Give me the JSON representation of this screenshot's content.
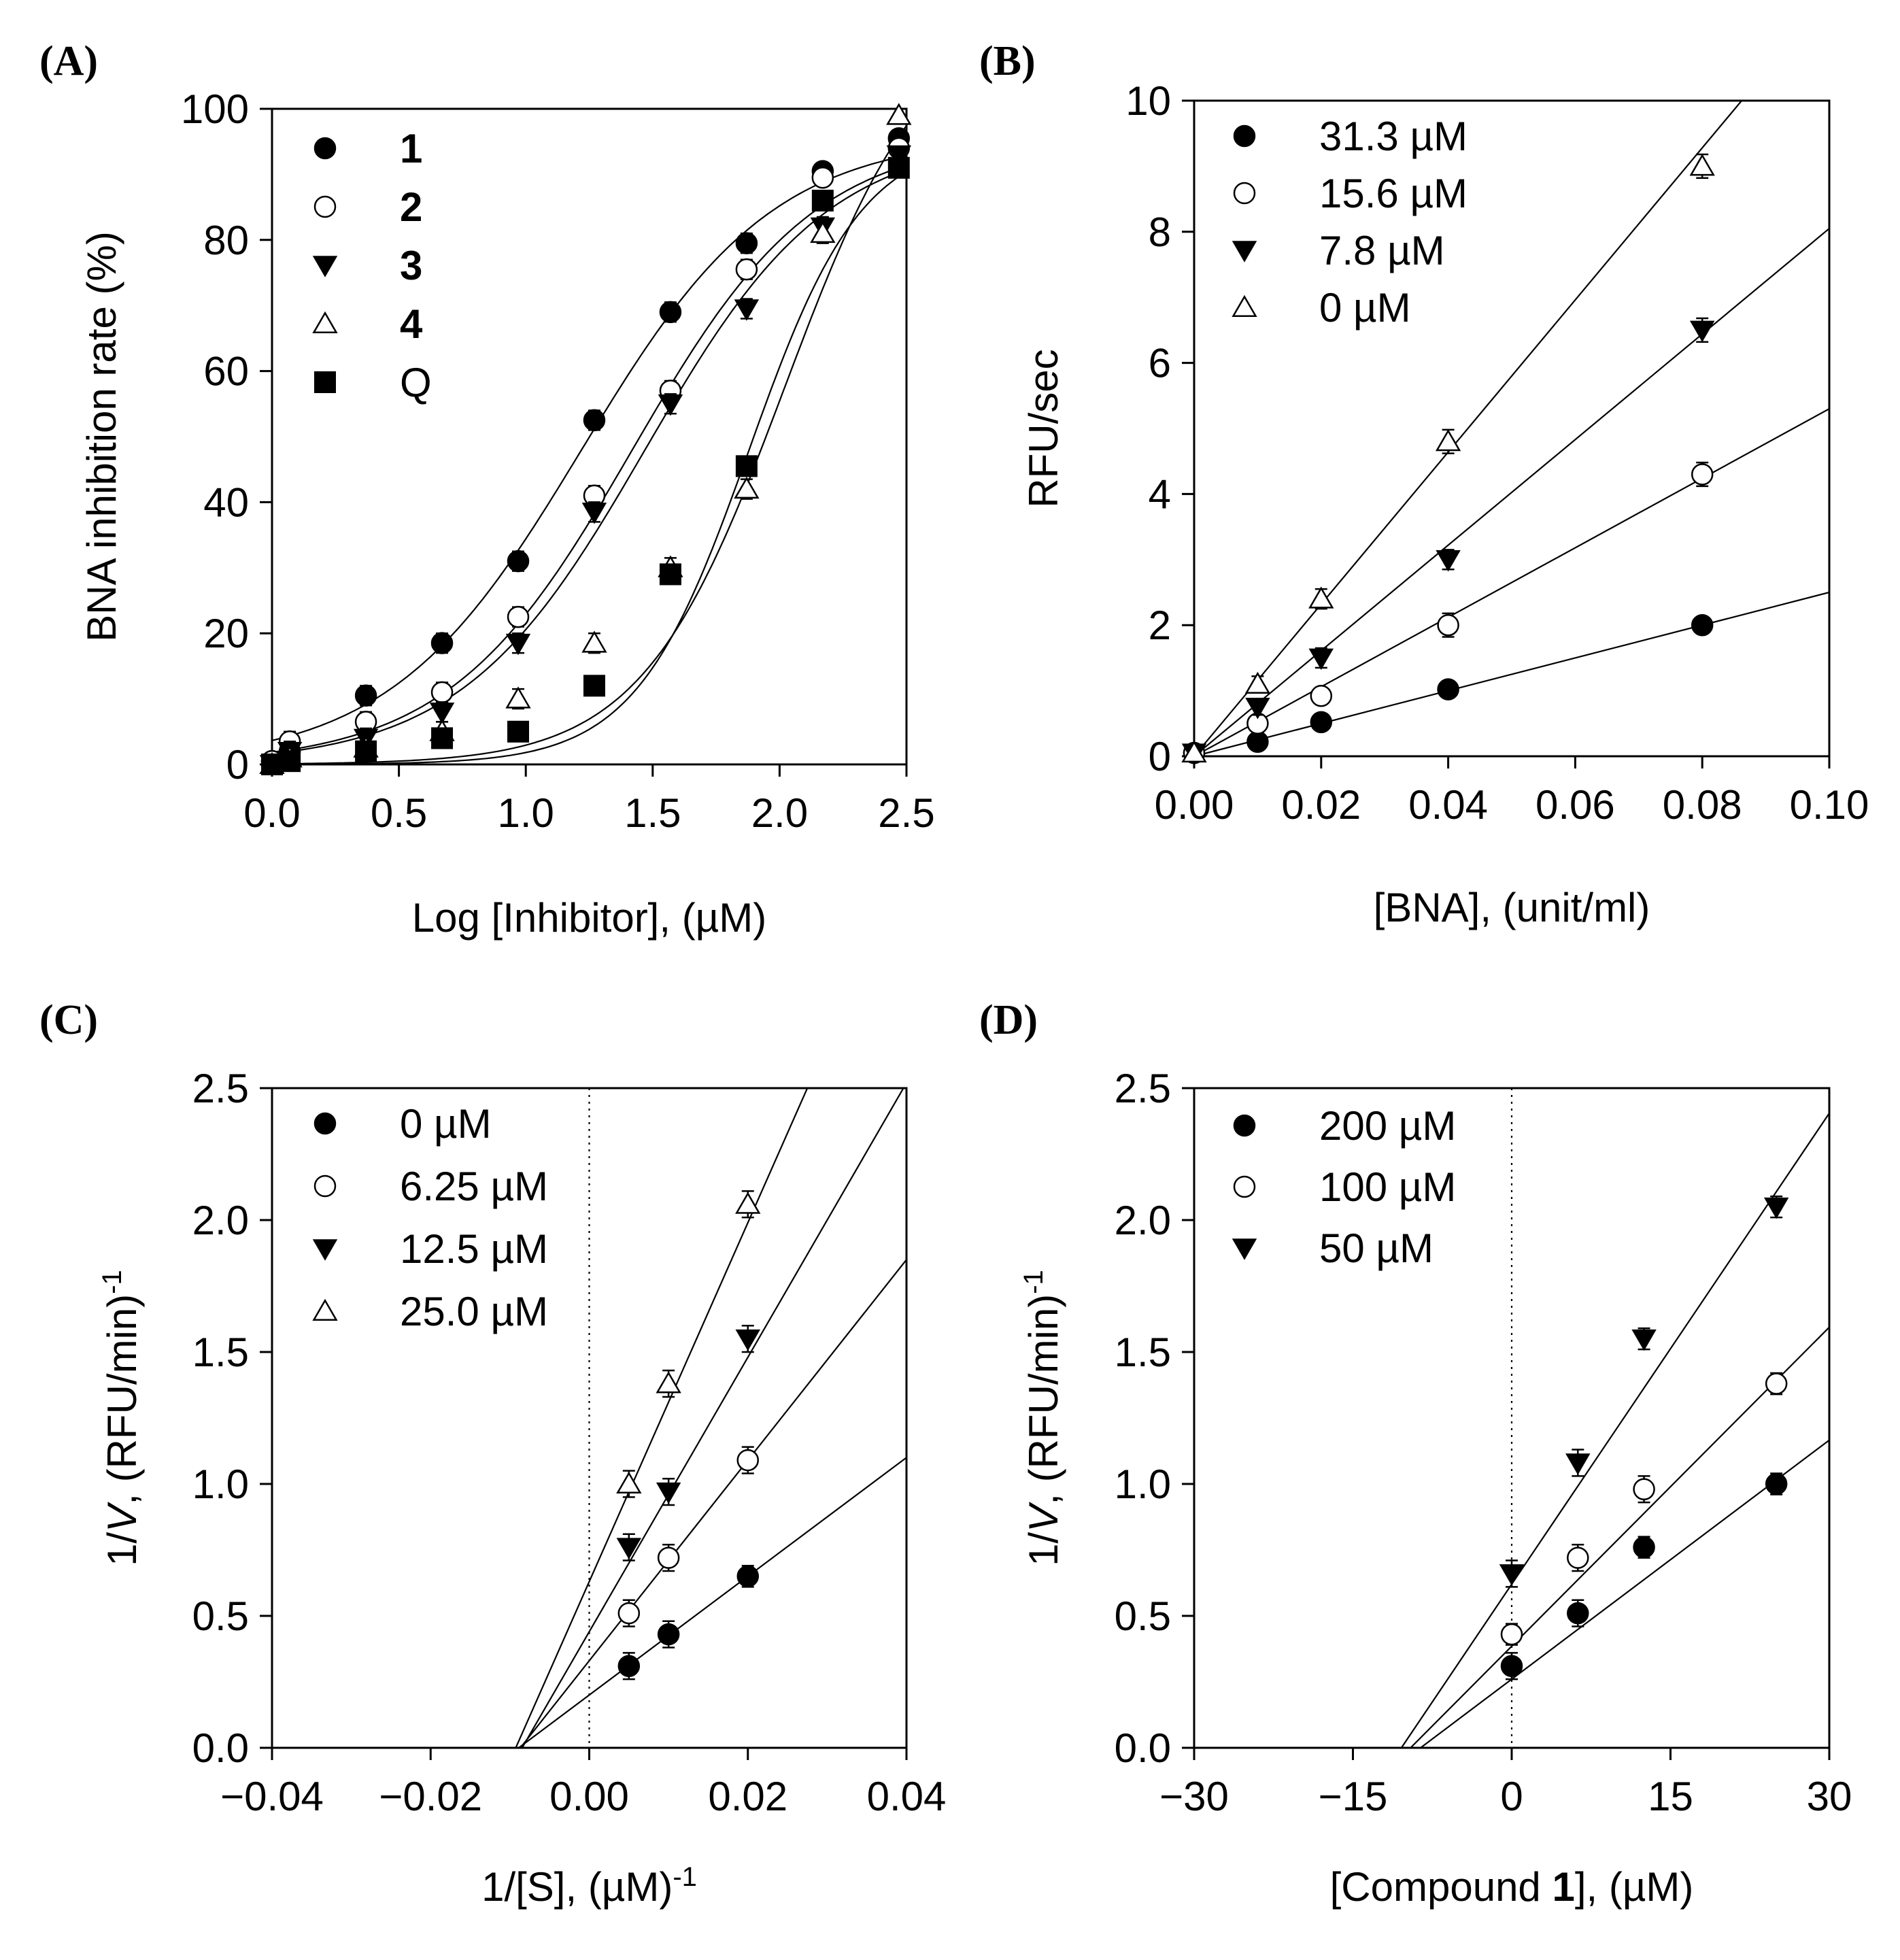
{
  "chart_data": [
    {
      "id": "A",
      "panel_label": "(A)",
      "type": "scatter",
      "xlabel": "Log [Inhibitor], (µM)",
      "ylabel": "BNA inhibition rate (%)",
      "xlim": [
        0,
        2.5
      ],
      "ylim": [
        0,
        100
      ],
      "xticks": [
        0,
        0.5,
        1,
        1.5,
        2,
        2.5
      ],
      "xtick_labels": [
        "0.0",
        "0.5",
        "1.0",
        "1.5",
        "2.0",
        "2.5"
      ],
      "yticks": [
        0,
        20,
        40,
        60,
        80,
        100
      ],
      "ytick_labels": [
        "0",
        "20",
        "40",
        "60",
        "80",
        "100"
      ],
      "legend_position": "top-left",
      "fit": "sigmoid",
      "series": [
        {
          "name": "1",
          "bold": true,
          "marker": "circle-filled",
          "fit_params": {
            "bottom": 0,
            "top": 96,
            "ec50": 1.22,
            "slope": 1.15
          },
          "x": [
            0.0,
            0.07,
            0.37,
            0.67,
            0.97,
            1.27,
            1.57,
            1.87,
            2.17,
            2.47
          ],
          "y": [
            0.5,
            2,
            10.5,
            18.5,
            31,
            52.5,
            69,
            79.5,
            90.5,
            95.5
          ],
          "err": [
            1,
            1.5,
            1.5,
            1.5,
            1.5,
            1.5,
            1.5,
            1.5,
            1.2,
            1.2
          ]
        },
        {
          "name": "2",
          "bold": true,
          "marker": "circle-open",
          "fit_params": {
            "bottom": 0,
            "top": 96,
            "ec50": 1.42,
            "slope": 1.2
          },
          "x": [
            0.0,
            0.07,
            0.37,
            0.67,
            0.97,
            1.27,
            1.57,
            1.87,
            2.17,
            2.47
          ],
          "y": [
            0.5,
            3.5,
            6.5,
            11,
            22.5,
            41,
            57,
            75.5,
            89.5,
            94
          ],
          "err": [
            1,
            1.5,
            1.5,
            1.5,
            1.5,
            1.5,
            1.5,
            1.5,
            1.2,
            1.2
          ]
        },
        {
          "name": "3",
          "bold": true,
          "marker": "triangle-down-filled",
          "fit_params": {
            "bottom": 0,
            "top": 96,
            "ec50": 1.47,
            "slope": 1.2
          },
          "x": [
            0.0,
            0.07,
            0.37,
            0.67,
            0.97,
            1.27,
            1.57,
            1.87,
            2.17,
            2.47
          ],
          "y": [
            0,
            2,
            4,
            8,
            18.5,
            38.5,
            55,
            69.5,
            82,
            93
          ],
          "err": [
            1,
            1.5,
            1.5,
            1.5,
            1.5,
            1.5,
            1.5,
            1.5,
            1.5,
            1.2
          ]
        },
        {
          "name": "4",
          "bold": true,
          "marker": "triangle-up-open",
          "fit_params": {
            "bottom": 0,
            "top": 115,
            "ec50": 2.02,
            "slope": 1.55
          },
          "x": [
            0.0,
            0.07,
            0.37,
            0.67,
            0.97,
            1.27,
            1.57,
            1.87,
            2.17,
            2.47
          ],
          "y": [
            0,
            1,
            2.5,
            5,
            10,
            18.5,
            30,
            42,
            81,
            99
          ],
          "err": [
            1,
            1.5,
            1.5,
            1.5,
            1.5,
            1.5,
            1.5,
            1.5,
            1.5,
            1
          ]
        },
        {
          "name": "Q",
          "bold": false,
          "marker": "square-filled",
          "fit_params": {
            "bottom": 0,
            "top": 96,
            "ec50": 1.88,
            "slope": 1.95
          },
          "x": [
            0.0,
            0.07,
            0.37,
            0.67,
            0.97,
            1.27,
            1.57,
            1.87,
            2.17,
            2.47
          ],
          "y": [
            0,
            0.5,
            2,
            4,
            5,
            12,
            29,
            45.5,
            86,
            91
          ],
          "err": [
            1,
            1.2,
            1.2,
            1.2,
            1.2,
            1.2,
            1.5,
            1.5,
            1.2,
            1.2
          ]
        }
      ]
    },
    {
      "id": "B",
      "panel_label": "(B)",
      "type": "scatter",
      "xlabel": "[BNA], (unit/ml)",
      "ylabel": "RFU/sec",
      "xlim": [
        0,
        0.1
      ],
      "ylim": [
        0,
        10
      ],
      "xticks": [
        0,
        0.02,
        0.04,
        0.06,
        0.08,
        0.1
      ],
      "xtick_labels": [
        "0.00",
        "0.02",
        "0.04",
        "0.06",
        "0.08",
        "0.10"
      ],
      "yticks": [
        0,
        2,
        4,
        6,
        8,
        10
      ],
      "ytick_labels": [
        "0",
        "2",
        "4",
        "6",
        "8",
        "10"
      ],
      "legend_position": "top-left",
      "fit": "linear",
      "series": [
        {
          "name": "31.3 µM",
          "marker": "circle-filled",
          "fit_params": {
            "slope": 25,
            "intercept": 0
          },
          "x": [
            0,
            0.01,
            0.02,
            0.04,
            0.08
          ],
          "y": [
            0.05,
            0.22,
            0.52,
            1.02,
            2.0
          ],
          "err": [
            0.05,
            0.06,
            0.08,
            0.1,
            0.1
          ]
        },
        {
          "name": "15.6 µM",
          "marker": "circle-open",
          "fit_params": {
            "slope": 53,
            "intercept": 0
          },
          "x": [
            0,
            0.01,
            0.02,
            0.04,
            0.08
          ],
          "y": [
            0.05,
            0.5,
            0.92,
            2.0,
            4.3
          ],
          "err": [
            0.05,
            0.1,
            0.12,
            0.18,
            0.18
          ]
        },
        {
          "name": "7.8 µM",
          "marker": "triangle-down-filled",
          "fit_params": {
            "slope": 80.5,
            "intercept": 0
          },
          "x": [
            0,
            0.01,
            0.02,
            0.04,
            0.08
          ],
          "y": [
            0.05,
            0.75,
            1.5,
            3.0,
            6.5
          ],
          "err": [
            0.05,
            0.12,
            0.15,
            0.15,
            0.18
          ]
        },
        {
          "name": "0 µM",
          "marker": "triangle-up-open",
          "fit_params": {
            "slope": 116,
            "intercept": 0
          },
          "x": [
            0,
            0.01,
            0.02,
            0.04,
            0.08
          ],
          "y": [
            0.05,
            1.1,
            2.4,
            4.8,
            9.0
          ],
          "err": [
            0.05,
            0.12,
            0.15,
            0.18,
            0.18
          ]
        }
      ]
    },
    {
      "id": "C",
      "panel_label": "(C)",
      "type": "scatter",
      "xlabel_main": "1/[S], (µM)",
      "xlabel_sup": "-1",
      "ylabel_main": "1/",
      "ylabel_italic": "V",
      "ylabel_rest": ", (RFU/min)",
      "ylabel_sup": "-1",
      "xlim": [
        -0.04,
        0.04
      ],
      "ylim": [
        0,
        2.5
      ],
      "xticks": [
        -0.04,
        -0.02,
        0,
        0.02,
        0.04
      ],
      "xtick_labels": [
        "−0.04",
        "−0.02",
        "0.00",
        "0.02",
        "0.04"
      ],
      "yticks": [
        0,
        0.5,
        1,
        1.5,
        2,
        2.5
      ],
      "ytick_labels": [
        "0.0",
        "0.5",
        "1.0",
        "1.5",
        "2.0",
        "2.5"
      ],
      "reference_line_x": 0,
      "legend_position": "top-left",
      "fit": "linear",
      "series": [
        {
          "name": "0 µM",
          "marker": "circle-filled",
          "fit_params": {
            "slope": 22.5,
            "intercept": 0.2
          },
          "x": [
            0.005,
            0.01,
            0.02
          ],
          "y": [
            0.31,
            0.43,
            0.65
          ],
          "err": [
            0.05,
            0.05,
            0.04
          ]
        },
        {
          "name": "6.25 µM",
          "marker": "circle-open",
          "fit_params": {
            "slope": 38,
            "intercept": 0.33
          },
          "x": [
            0.005,
            0.01,
            0.02
          ],
          "y": [
            0.51,
            0.72,
            1.09
          ],
          "err": [
            0.05,
            0.05,
            0.05
          ]
        },
        {
          "name": "12.5 µM",
          "marker": "triangle-down-filled",
          "fit_params": {
            "slope": 52,
            "intercept": 0.44
          },
          "x": [
            0.005,
            0.01,
            0.02
          ],
          "y": [
            0.76,
            0.97,
            1.55
          ],
          "err": [
            0.05,
            0.05,
            0.05
          ]
        },
        {
          "name": "25.0 µM",
          "marker": "triangle-up-open",
          "fit_params": {
            "slope": 68,
            "intercept": 0.63
          },
          "x": [
            0.005,
            0.01,
            0.02
          ],
          "y": [
            1.0,
            1.38,
            2.06
          ],
          "err": [
            0.05,
            0.05,
            0.05
          ]
        }
      ]
    },
    {
      "id": "D",
      "panel_label": "(D)",
      "type": "scatter",
      "xlabel_main": "[Compound ",
      "xlabel_bold": "1",
      "xlabel_rest": "], (µM)",
      "ylabel_main": "1/",
      "ylabel_italic": "V",
      "ylabel_rest": ", (RFU/min)",
      "ylabel_sup": "-1",
      "xlim": [
        -30,
        30
      ],
      "ylim": [
        0,
        2.5
      ],
      "xticks": [
        -30,
        -15,
        0,
        15,
        30
      ],
      "xtick_labels": [
        "−30",
        "−15",
        "0",
        "15",
        "30"
      ],
      "yticks": [
        0,
        0.5,
        1,
        1.5,
        2,
        2.5
      ],
      "ytick_labels": [
        "0.0",
        "0.5",
        "1.0",
        "1.5",
        "2.0",
        "2.5"
      ],
      "reference_line_x": 0,
      "legend_position": "top-left",
      "fit": "linear",
      "series": [
        {
          "name": "200 µM",
          "marker": "circle-filled",
          "fit_params": {
            "slope": 0.0302,
            "intercept": 0.26
          },
          "x": [
            0,
            6.25,
            12.5,
            25
          ],
          "y": [
            0.31,
            0.51,
            0.76,
            1.0
          ],
          "err": [
            0.05,
            0.05,
            0.04,
            0.04
          ]
        },
        {
          "name": "100 µM",
          "marker": "circle-open",
          "fit_params": {
            "slope": 0.0403,
            "intercept": 0.385
          },
          "x": [
            0,
            6.25,
            12.5,
            25
          ],
          "y": [
            0.43,
            0.72,
            0.98,
            1.38
          ],
          "err": [
            0.04,
            0.05,
            0.05,
            0.04
          ]
        },
        {
          "name": "50 µM",
          "marker": "triangle-down-filled",
          "fit_params": {
            "slope": 0.0595,
            "intercept": 0.62
          },
          "x": [
            0,
            6.25,
            12.5,
            25
          ],
          "y": [
            0.66,
            1.08,
            1.55,
            2.05
          ],
          "err": [
            0.05,
            0.05,
            0.04,
            0.04
          ]
        }
      ]
    }
  ]
}
